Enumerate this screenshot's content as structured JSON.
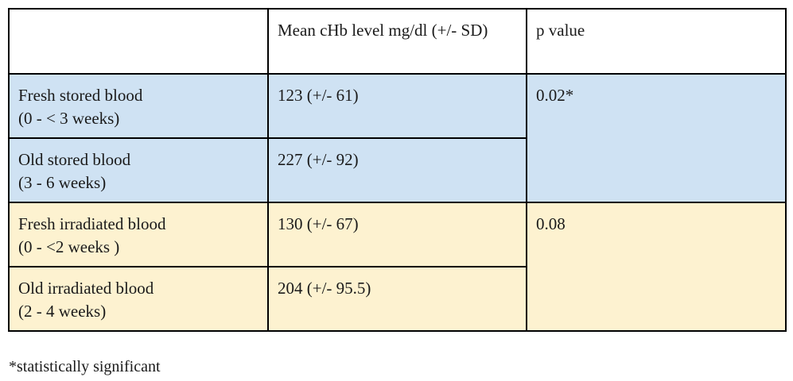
{
  "table": {
    "header": {
      "col1": "",
      "col2": "Mean cHb level mg/dl (+/- SD)",
      "col3": "p value"
    },
    "groups": [
      {
        "p_value": "0.02*",
        "background": "#cfe2f3",
        "rows": [
          {
            "label_line1": "Fresh stored blood",
            "label_line2": "(0 - < 3 weeks)",
            "mean": "123 (+/- 61)"
          },
          {
            "label_line1": "Old stored blood",
            "label_line2": "(3 - 6 weeks)",
            "mean": "227 (+/- 92)"
          }
        ]
      },
      {
        "p_value": "0.08",
        "background": "#fdf2d0",
        "rows": [
          {
            "label_line1": "Fresh irradiated blood",
            "label_line2": "(0 - <2 weeks )",
            "mean": "130 (+/- 67)"
          },
          {
            "label_line1": "Old irradiated blood",
            "label_line2": "(2 - 4 weeks)",
            "mean": "204 (+/- 95.5)"
          }
        ]
      }
    ]
  },
  "footnote": "*statistically significant"
}
